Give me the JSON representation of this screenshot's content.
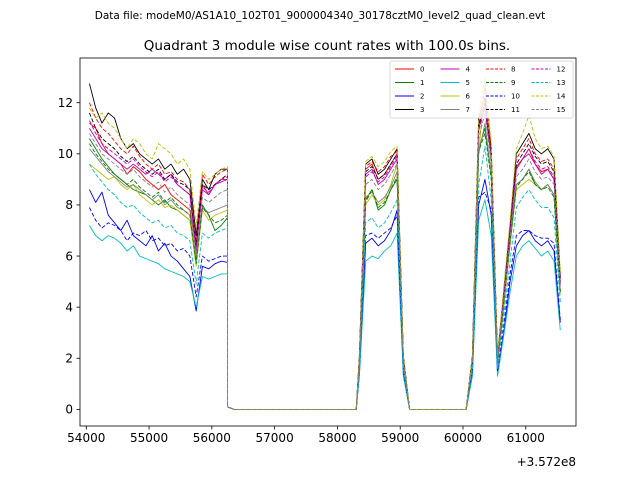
{
  "suptitle": "Data file: modeM0/AS1A10_102T01_9000004340_30178cztM0_level2_quad_clean.evt",
  "chart_data": {
    "type": "line",
    "title": "Quadrant 3 module wise count rates with 100.0s bins.",
    "xlabel": "",
    "ylabel": "",
    "offset_label": "+3.572e8",
    "xlim": [
      53900,
      61800
    ],
    "ylim": [
      -0.65,
      13.75
    ],
    "xticks": [
      54000,
      55000,
      56000,
      57000,
      58000,
      59000,
      60000,
      61000
    ],
    "xtick_labels": [
      "54000",
      "55000",
      "56000",
      "57000",
      "58000",
      "59000",
      "60000",
      "61000"
    ],
    "yticks": [
      0,
      2,
      4,
      6,
      8,
      10,
      12
    ],
    "ytick_labels": [
      "0",
      "2",
      "4",
      "6",
      "8",
      "10",
      "12"
    ],
    "legend_position": "top-right",
    "segments": [
      {
        "x_start": 54050,
        "step": 100,
        "n": 23
      },
      {
        "x_start": 56250,
        "step": 100,
        "n": 2
      },
      {
        "x_start": 56400,
        "step": 100,
        "n": 20
      },
      {
        "x_start": 58350,
        "step": 100,
        "n": 8
      },
      {
        "x_start": 59150,
        "step": 100,
        "n": 10
      },
      {
        "x_start": 60150,
        "step": 100,
        "n": 15
      }
    ],
    "series": [
      {
        "name": "0",
        "color": "#ff0000",
        "dash": "solid",
        "seg1": [
          11.2,
          11.0,
          10.4,
          10.0,
          9.8,
          9.6,
          9.2,
          9.5,
          9.3,
          9.0,
          8.8,
          8.6,
          8.8,
          8.4,
          8.2,
          8.0,
          7.8,
          6.4,
          8.8,
          8.4,
          8.8,
          9.0,
          9.0
        ],
        "seg4": [
          2.0,
          9.4,
          9.6,
          9.0,
          9.2,
          9.6,
          10.0,
          2.0
        ],
        "seg6": [
          2.0,
          11.0,
          12.0,
          10.0,
          2.0,
          4.5,
          7.0,
          9.5,
          9.8,
          10.2,
          9.6,
          9.3,
          9.4,
          9.0,
          5.0
        ]
      },
      {
        "name": "1",
        "color": "#008000",
        "dash": "solid",
        "seg1": [
          10.6,
          10.2,
          9.8,
          9.5,
          9.2,
          9.0,
          8.8,
          8.6,
          8.5,
          8.4,
          8.2,
          8.0,
          8.2,
          7.9,
          7.8,
          7.6,
          7.4,
          5.8,
          8.0,
          7.6,
          7.0,
          7.2,
          7.5
        ],
        "seg4": [
          1.8,
          8.2,
          8.6,
          7.8,
          8.0,
          8.6,
          9.0,
          1.8
        ],
        "seg6": [
          1.8,
          10.2,
          11.0,
          9.2,
          1.8,
          4.2,
          6.6,
          8.8,
          9.0,
          9.4,
          8.8,
          8.6,
          8.8,
          8.4,
          4.6
        ]
      },
      {
        "name": "2",
        "color": "#0000ff",
        "dash": "solid",
        "seg1": [
          8.6,
          8.1,
          8.5,
          7.6,
          7.3,
          7.0,
          7.4,
          6.8,
          6.6,
          6.4,
          6.8,
          6.2,
          6.5,
          6.0,
          5.8,
          5.5,
          5.2,
          3.85,
          5.6,
          5.5,
          5.7,
          5.8,
          5.75
        ],
        "seg4": [
          1.4,
          6.5,
          6.7,
          6.4,
          6.6,
          7.0,
          7.8,
          1.4
        ],
        "seg6": [
          1.4,
          8.0,
          9.0,
          7.6,
          1.4,
          3.0,
          5.0,
          6.4,
          6.8,
          7.0,
          6.6,
          6.4,
          6.6,
          6.2,
          3.4
        ]
      },
      {
        "name": "3",
        "color": "#000000",
        "dash": "solid",
        "seg1": [
          12.75,
          11.8,
          11.2,
          11.6,
          11.4,
          10.6,
          10.2,
          10.4,
          10.0,
          9.8,
          9.6,
          9.8,
          9.4,
          9.6,
          9.2,
          9.4,
          9.0,
          6.8,
          9.0,
          8.6,
          9.2,
          9.4,
          9.4
        ],
        "seg4": [
          2.1,
          9.6,
          9.8,
          9.2,
          9.4,
          9.8,
          10.2,
          2.1
        ],
        "seg6": [
          2.1,
          11.4,
          12.2,
          10.2,
          2.1,
          4.6,
          7.2,
          10.0,
          10.4,
          10.8,
          10.2,
          10.0,
          10.2,
          9.8,
          5.2
        ]
      },
      {
        "name": "4",
        "color": "#bf00bf",
        "dash": "solid",
        "seg1": [
          11.0,
          10.6,
          10.2,
          10.0,
          9.8,
          9.6,
          9.4,
          9.6,
          9.4,
          9.2,
          9.4,
          9.2,
          9.0,
          9.2,
          8.8,
          8.6,
          8.4,
          6.2,
          8.6,
          8.4,
          8.8,
          8.9,
          9.0
        ],
        "seg4": [
          1.9,
          9.2,
          9.4,
          8.8,
          9.0,
          9.4,
          9.8,
          1.9
        ],
        "seg6": [
          1.9,
          11.0,
          11.8,
          9.8,
          1.9,
          4.4,
          7.0,
          9.4,
          9.8,
          10.0,
          9.6,
          9.2,
          9.4,
          9.0,
          4.9
        ]
      },
      {
        "name": "5",
        "color": "#00bfbf",
        "dash": "solid",
        "seg1": [
          7.2,
          6.8,
          6.6,
          6.8,
          6.7,
          6.5,
          6.2,
          6.4,
          6.0,
          5.9,
          5.8,
          5.7,
          5.5,
          5.4,
          5.3,
          5.2,
          5.0,
          4.0,
          5.2,
          5.1,
          5.2,
          5.3,
          5.3
        ],
        "seg4": [
          1.3,
          5.8,
          6.0,
          5.9,
          6.2,
          6.4,
          6.9,
          1.3
        ],
        "seg6": [
          1.3,
          7.4,
          8.2,
          6.8,
          1.3,
          2.9,
          4.6,
          6.0,
          6.4,
          6.6,
          6.3,
          6.0,
          6.2,
          5.8,
          3.1
        ]
      },
      {
        "name": "6",
        "color": "#bfbf00",
        "dash": "solid",
        "seg1": [
          9.6,
          9.4,
          9.2,
          9.0,
          9.1,
          8.8,
          8.6,
          8.8,
          8.4,
          8.2,
          8.0,
          8.2,
          7.9,
          8.0,
          7.8,
          7.6,
          7.4,
          5.6,
          7.8,
          7.4,
          7.6,
          7.7,
          7.8
        ],
        "seg4": [
          1.7,
          8.0,
          8.4,
          8.0,
          8.2,
          8.8,
          9.6,
          1.7
        ],
        "seg6": [
          1.7,
          10.0,
          12.8,
          9.6,
          1.7,
          4.0,
          6.4,
          8.6,
          8.8,
          9.0,
          8.8,
          8.6,
          8.8,
          8.4,
          4.5
        ]
      },
      {
        "name": "7",
        "color": "#808080",
        "dash": "solid",
        "seg1": [
          10.2,
          9.9,
          9.6,
          9.3,
          9.1,
          8.9,
          8.7,
          8.8,
          8.6,
          8.4,
          8.2,
          8.4,
          8.0,
          8.2,
          7.9,
          7.8,
          7.6,
          5.9,
          7.9,
          7.7,
          7.8,
          7.9,
          8.0
        ],
        "seg4": [
          1.8,
          8.3,
          8.5,
          8.1,
          8.3,
          8.7,
          9.3,
          1.8
        ],
        "seg6": [
          1.8,
          10.0,
          11.2,
          9.2,
          1.8,
          4.1,
          6.5,
          8.8,
          9.0,
          9.4,
          8.9,
          8.6,
          8.8,
          8.4,
          4.6
        ]
      },
      {
        "name": "8",
        "color": "#ff0000",
        "dash": "4,2",
        "seg1": [
          12.0,
          11.4,
          11.0,
          10.8,
          10.5,
          10.2,
          10.0,
          10.3,
          9.9,
          9.6,
          9.4,
          9.6,
          9.2,
          9.3,
          9.0,
          8.9,
          8.6,
          6.5,
          9.2,
          8.8,
          9.1,
          9.3,
          9.4
        ],
        "seg4": [
          2.0,
          9.5,
          9.7,
          9.3,
          9.5,
          9.9,
          10.1,
          2.0
        ],
        "seg6": [
          2.0,
          11.2,
          12.6,
          10.2,
          2.0,
          4.6,
          7.1,
          9.8,
          10.2,
          10.6,
          10.0,
          9.7,
          9.8,
          9.4,
          5.1
        ]
      },
      {
        "name": "9",
        "color": "#008000",
        "dash": "4,2",
        "seg1": [
          10.4,
          10.0,
          9.7,
          9.4,
          9.2,
          9.0,
          8.8,
          9.0,
          8.7,
          8.5,
          8.3,
          8.5,
          8.1,
          8.3,
          8.0,
          7.8,
          7.6,
          5.7,
          7.9,
          7.6,
          7.3,
          7.4,
          7.6
        ],
        "seg4": [
          1.8,
          8.1,
          8.6,
          7.9,
          8.1,
          8.6,
          9.1,
          1.8
        ],
        "seg6": [
          1.8,
          10.1,
          10.8,
          9.0,
          1.8,
          4.2,
          6.6,
          8.7,
          9.0,
          9.3,
          8.8,
          8.6,
          8.7,
          8.3,
          4.6
        ]
      },
      {
        "name": "10",
        "color": "#0000ff",
        "dash": "4,2",
        "seg1": [
          7.9,
          7.4,
          7.1,
          7.3,
          7.2,
          7.0,
          6.6,
          6.9,
          6.8,
          7.0,
          6.6,
          6.7,
          6.4,
          6.5,
          6.2,
          6.3,
          6.0,
          4.4,
          6.0,
          5.8,
          5.9,
          6.0,
          6.0
        ],
        "seg4": [
          1.5,
          6.8,
          6.9,
          6.7,
          6.9,
          7.1,
          7.6,
          1.5
        ],
        "seg6": [
          1.5,
          8.3,
          8.5,
          7.8,
          1.5,
          3.3,
          5.3,
          6.8,
          7.0,
          7.0,
          6.8,
          6.7,
          6.7,
          6.5,
          3.5
        ]
      },
      {
        "name": "11",
        "color": "#000000",
        "dash": "4,2",
        "seg1": [
          11.6,
          11.0,
          10.6,
          10.4,
          10.2,
          9.9,
          9.7,
          9.9,
          9.6,
          9.4,
          9.2,
          9.4,
          9.0,
          9.2,
          8.9,
          8.8,
          8.6,
          6.4,
          8.8,
          8.6,
          8.8,
          9.0,
          9.2
        ],
        "seg4": [
          2.0,
          9.3,
          9.5,
          9.0,
          9.2,
          9.6,
          10.0,
          2.0
        ],
        "seg6": [
          2.0,
          11.1,
          12.0,
          10.0,
          2.0,
          4.5,
          7.0,
          9.6,
          10.0,
          10.4,
          9.9,
          9.6,
          9.7,
          9.3,
          5.0
        ]
      },
      {
        "name": "12",
        "color": "#bf00bf",
        "dash": "4,2",
        "seg1": [
          11.3,
          10.8,
          10.4,
          10.2,
          10.0,
          9.8,
          9.6,
          9.8,
          9.5,
          9.3,
          9.1,
          9.3,
          8.9,
          9.1,
          8.8,
          8.6,
          8.4,
          6.3,
          8.7,
          8.5,
          8.8,
          9.0,
          9.1
        ],
        "seg4": [
          1.9,
          9.1,
          9.3,
          8.9,
          9.1,
          9.5,
          9.9,
          1.9
        ],
        "seg6": [
          1.9,
          10.9,
          11.9,
          9.9,
          1.9,
          4.4,
          6.9,
          9.4,
          9.8,
          10.2,
          9.7,
          9.4,
          9.5,
          9.1,
          4.9
        ]
      },
      {
        "name": "13",
        "color": "#00bfbf",
        "dash": "4,2",
        "seg1": [
          9.6,
          9.2,
          8.9,
          8.6,
          8.4,
          8.1,
          7.9,
          8.0,
          7.7,
          7.5,
          7.3,
          7.4,
          7.1,
          7.2,
          6.9,
          6.8,
          6.6,
          4.9,
          6.9,
          6.7,
          6.9,
          7.0,
          7.1
        ],
        "seg4": [
          1.6,
          7.3,
          7.5,
          7.1,
          7.3,
          7.7,
          8.2,
          1.6
        ],
        "seg6": [
          1.6,
          8.8,
          10.3,
          8.2,
          1.6,
          3.7,
          5.8,
          7.9,
          8.3,
          8.6,
          8.2,
          7.9,
          7.9,
          7.5,
          4.2
        ]
      },
      {
        "name": "14",
        "color": "#bfbf00",
        "dash": "4,2",
        "seg1": [
          11.8,
          11.4,
          11.6,
          11.2,
          11.0,
          10.6,
          10.2,
          10.6,
          10.4,
          10.0,
          9.8,
          10.4,
          10.2,
          10.0,
          9.6,
          9.8,
          9.4,
          7.2,
          9.3,
          9.0,
          9.2,
          9.4,
          9.5
        ],
        "seg4": [
          2.1,
          9.7,
          9.9,
          9.5,
          9.7,
          10.1,
          10.3,
          2.1
        ],
        "seg6": [
          2.1,
          11.6,
          13.0,
          10.4,
          2.1,
          4.8,
          7.4,
          10.2,
          10.8,
          11.5,
          10.6,
          10.2,
          10.3,
          9.9,
          5.4
        ]
      },
      {
        "name": "15",
        "color": "#808080",
        "dash": "4,2",
        "seg1": [
          10.8,
          10.4,
          10.0,
          9.8,
          9.6,
          9.4,
          9.2,
          9.4,
          9.1,
          8.9,
          8.7,
          8.9,
          8.5,
          8.7,
          8.4,
          8.2,
          8.0,
          6.0,
          8.3,
          8.1,
          8.3,
          8.5,
          8.6
        ],
        "seg4": [
          1.9,
          8.8,
          9.0,
          8.6,
          8.8,
          9.2,
          9.6,
          1.9
        ],
        "seg6": [
          1.9,
          10.6,
          11.6,
          9.6,
          1.9,
          4.3,
          6.7,
          9.1,
          9.4,
          9.8,
          9.3,
          9.0,
          9.1,
          8.8,
          4.8
        ]
      }
    ]
  }
}
